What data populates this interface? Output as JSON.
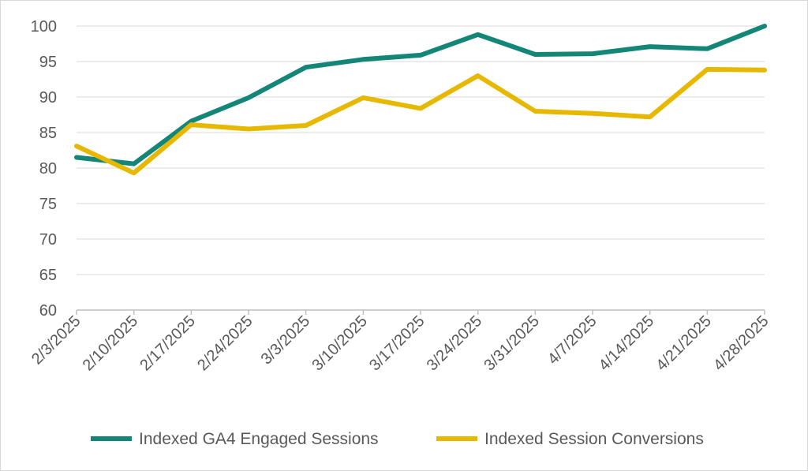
{
  "chart_data": {
    "type": "line",
    "title": "",
    "xlabel": "",
    "ylabel": "",
    "categories": [
      "2/3/2025",
      "2/10/2025",
      "2/17/2025",
      "2/24/2025",
      "3/3/2025",
      "3/10/2025",
      "3/17/2025",
      "3/24/2025",
      "3/31/2025",
      "4/7/2025",
      "4/14/2025",
      "4/21/2025",
      "4/28/2025"
    ],
    "ylim": [
      60,
      100
    ],
    "yticks": [
      "60",
      "65",
      "70",
      "75",
      "80",
      "85",
      "90",
      "95",
      "100"
    ],
    "grid": true,
    "legend_position": "bottom",
    "series": [
      {
        "name": "Indexed GA4 Engaged Sessions",
        "color": "#138677",
        "values": [
          81.5,
          80.6,
          86.6,
          89.9,
          94.2,
          95.3,
          95.9,
          98.8,
          96.0,
          96.1,
          97.1,
          96.8,
          100.0
        ]
      },
      {
        "name": "Indexed Session Conversions",
        "color": "#e6b800",
        "values": [
          83.1,
          79.3,
          86.1,
          85.5,
          86.0,
          89.9,
          88.4,
          93.0,
          88.0,
          87.7,
          87.2,
          93.9,
          93.8
        ]
      }
    ]
  }
}
